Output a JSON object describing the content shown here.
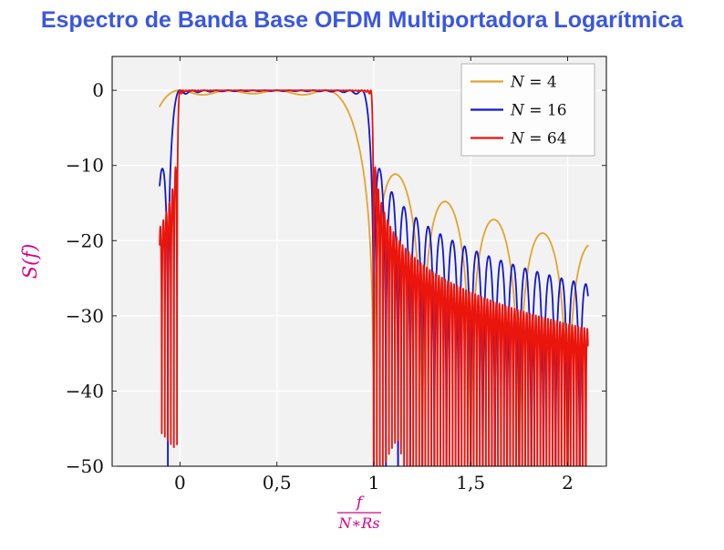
{
  "title": "Espectro de Banda Base OFDM Multiportadora Logarítmica",
  "chart_data": {
    "type": "line",
    "title": "Espectro de Banda Base OFDM Multiportadora Logarítmica",
    "ylabel": "S(f)",
    "xlabel": {
      "numerator": "f",
      "denominator": "N∗Rs"
    },
    "xlim": [
      -0.35,
      2.2
    ],
    "ylim": [
      -50,
      4.5
    ],
    "x_ticks": {
      "values": [
        0,
        0.5,
        1,
        1.5,
        2
      ],
      "labels": [
        "0",
        "0,5",
        "1",
        "1,5",
        "2"
      ]
    },
    "y_ticks": {
      "values": [
        0,
        -10,
        -20,
        -30,
        -40,
        -50
      ],
      "labels": [
        "0",
        "−10",
        "−20",
        "−30",
        "−40",
        "−50"
      ]
    },
    "grid": true,
    "legend": {
      "position": "top-right"
    },
    "series": [
      {
        "name": "N = 4",
        "subcarriers": 4,
        "color": "#e3a42f"
      },
      {
        "name": "N = 16",
        "subcarriers": 16,
        "color": "#1118d0"
      },
      {
        "name": "N = 64",
        "subcarriers": 64,
        "color": "#ea150c"
      }
    ],
    "x_range_of_data": [
      -0.105,
      2.105
    ],
    "function": "S_dB(x) = 10·log10( Σ_{k=0}^{N−1} sinc²(N·x − k) ),  x = f/(N·Rs)",
    "passband_level_db": 0,
    "first_sidelobe_db": {
      "N4": -11.5,
      "N16": -12,
      "N64": -13
    },
    "clip_floor_db": -50
  },
  "style": {
    "title_color": "#3a57de",
    "axis_label_color": "#d6008c",
    "plot_bg": "#f2f2f2",
    "grid_color": "#ffffff",
    "frame_color": "#000000",
    "legend_border": "#b3b3b3",
    "legend_bg": "#fdfdfd"
  }
}
